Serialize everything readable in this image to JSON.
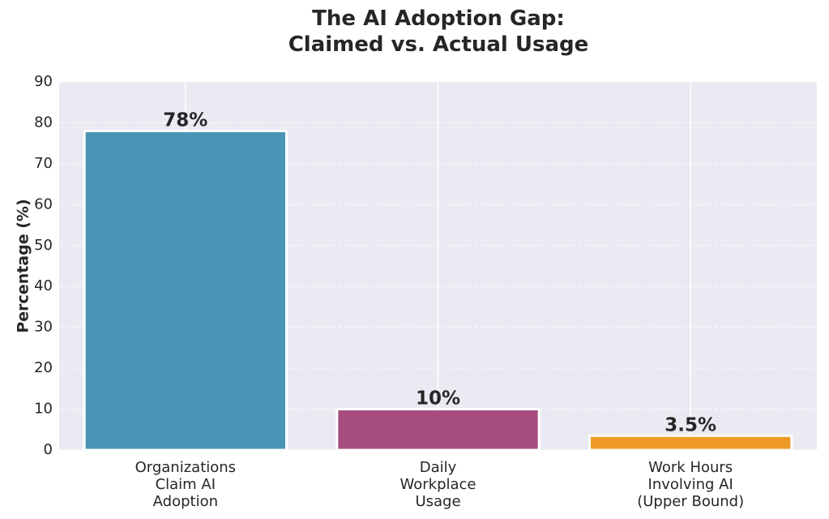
{
  "chart_data": {
    "type": "bar",
    "title": "The AI Adoption Gap:\nClaimed vs. Actual Usage",
    "y_label": "Percentage (%)",
    "categories": [
      "Organizations\nClaim AI\nAdoption",
      "Daily\nWorkplace\nUsage",
      "Work Hours\nInvolving AI\n(Upper Bound)"
    ],
    "values": [
      78,
      10,
      3.5
    ],
    "value_labels": [
      "78%",
      "10%",
      "3.5%"
    ],
    "colors": [
      "#4a94b5",
      "#a64d7e",
      "#ee9a26"
    ],
    "ylim": [
      0,
      90
    ],
    "yticks": [
      0,
      10,
      20,
      30,
      40,
      50,
      60,
      70,
      80,
      90
    ],
    "grid": true
  }
}
